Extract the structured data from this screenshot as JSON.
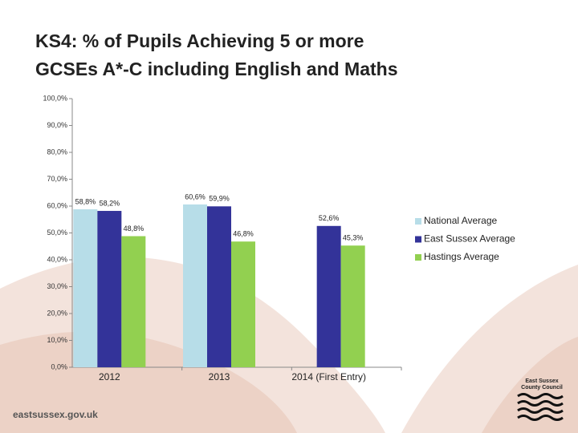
{
  "chart_data": {
    "type": "bar",
    "title": "KS4: % of Pupils Achieving 5 or more GCSEs A*-C including English and Maths",
    "categories": [
      "2012",
      "2013",
      "2014 (First Entry)"
    ],
    "series": [
      {
        "name": "National Average",
        "color": "#b7dde8",
        "values": [
          58.8,
          60.6,
          null
        ],
        "value_labels": [
          "58,8%",
          "60,6%",
          null
        ]
      },
      {
        "name": "East Sussex Average",
        "color": "#333399",
        "values": [
          58.2,
          59.9,
          52.6
        ],
        "value_labels": [
          "58,2%",
          "59,9%",
          "52,6%"
        ]
      },
      {
        "name": "Hastings Average",
        "color": "#92d050",
        "values": [
          48.8,
          46.8,
          45.3
        ],
        "value_labels": [
          "48,8%",
          "46,8%",
          "45,3%"
        ]
      }
    ],
    "ylim": [
      0,
      100
    ],
    "yticks": [
      {
        "value": 0,
        "label": "0,0%"
      },
      {
        "value": 10,
        "label": "10,0%"
      },
      {
        "value": 20,
        "label": "20,0%"
      },
      {
        "value": 30,
        "label": "30,0%"
      },
      {
        "value": 40,
        "label": "40,0%"
      },
      {
        "value": 50,
        "label": "50,0%"
      },
      {
        "value": 60,
        "label": "60,0%"
      },
      {
        "value": 70,
        "label": "70,0%"
      },
      {
        "value": 80,
        "label": "80,0%"
      },
      {
        "value": 90,
        "label": "90,0%"
      },
      {
        "value": 100,
        "label": "100,0%"
      }
    ],
    "grid": false,
    "legend": "right"
  },
  "footer": {
    "url": "eastsussex.gov.uk",
    "logo_lines": [
      "East Sussex",
      "County Council"
    ]
  }
}
